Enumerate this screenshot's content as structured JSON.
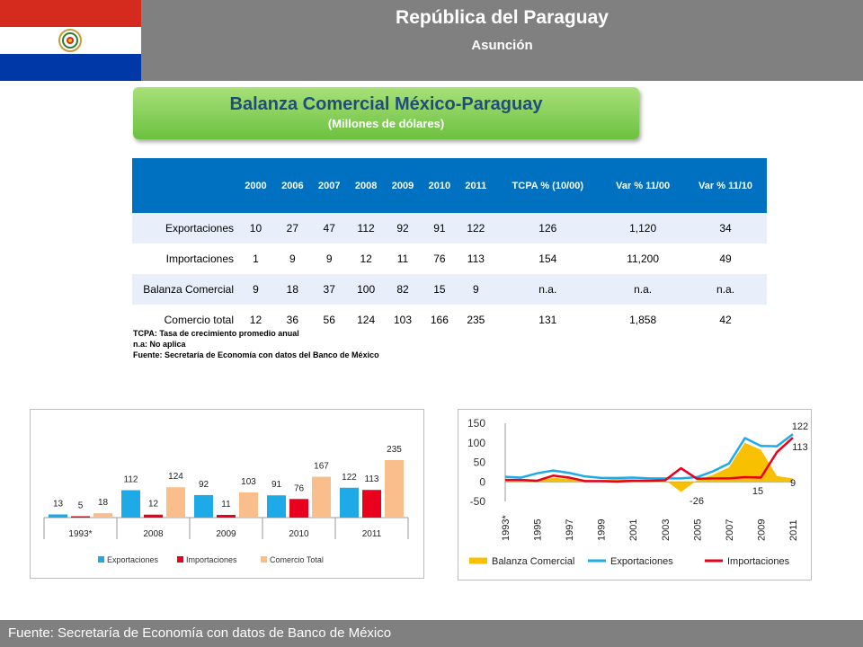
{
  "header": {
    "country": "República del Paraguay",
    "city": "Asunción"
  },
  "title_box": {
    "title": "Balanza Comercial México-Paraguay",
    "subtitle": "(Millones de dólares)"
  },
  "table": {
    "headers": [
      "2000",
      "2006",
      "2007",
      "2008",
      "2009",
      "2010",
      "2011",
      "TCPA % (10/00)",
      "Var % 11/00",
      "Var % 11/10"
    ],
    "rows": [
      {
        "label": "Exportaciones",
        "values": [
          "10",
          "27",
          "47",
          "112",
          "92",
          "91",
          "122",
          "126",
          "1,120",
          "34"
        ]
      },
      {
        "label": "Importaciones",
        "values": [
          "1",
          "9",
          "9",
          "12",
          "11",
          "76",
          "113",
          "154",
          "11,200",
          "49"
        ]
      },
      {
        "label": "Balanza Comercial",
        "values": [
          "9",
          "18",
          "37",
          "100",
          "82",
          "15",
          "9",
          "n.a.",
          "n.a.",
          "n.a."
        ]
      },
      {
        "label": "Comercio total",
        "values": [
          "12",
          "36",
          "56",
          "124",
          "103",
          "166",
          "235",
          "131",
          "1,858",
          "42"
        ]
      }
    ]
  },
  "notes": [
    "TCPA: Tasa de crecimiento promedio anual",
    "n.a: No aplica",
    "Fuente: Secretaría de Economía con datos del Banco de México"
  ],
  "chart_data": [
    {
      "type": "bar",
      "categories": [
        "1993*",
        "2008",
        "2009",
        "2010",
        "2011"
      ],
      "series": [
        {
          "name": "Exportaciones",
          "color": "#1eaae7",
          "values": [
            13,
            112,
            92,
            91,
            122
          ]
        },
        {
          "name": "Importaciones",
          "color": "#e8001c",
          "values": [
            5,
            12,
            11,
            76,
            113
          ]
        },
        {
          "name": "Comercio Total",
          "color": "#f9be8c",
          "values": [
            18,
            124,
            103,
            167,
            235
          ]
        }
      ],
      "ylim": [
        0,
        250
      ],
      "legend": "bottom"
    },
    {
      "type": "line",
      "x": [
        "1993*",
        "1994",
        "1995",
        "1996",
        "1997",
        "1998",
        "1999",
        "2000",
        "2001",
        "2002",
        "2003",
        "2004",
        "2005",
        "2006",
        "2007",
        "2008",
        "2009",
        "2010",
        "2011"
      ],
      "x_tick_labels": [
        "1993*",
        "1995",
        "1997",
        "1999",
        "2001",
        "2003",
        "2005",
        "2007",
        "2009",
        "2011"
      ],
      "y_ticks": [
        "150",
        "100",
        "50",
        "0",
        "-50"
      ],
      "ylim": [
        -50,
        150
      ],
      "series": [
        {
          "name": "Balanza Comercial",
          "kind": "area",
          "color": "#f7c000",
          "values": [
            8,
            6,
            4,
            10,
            8,
            4,
            4,
            9,
            6,
            4,
            5,
            -26,
            4,
            18,
            37,
            100,
            82,
            15,
            9
          ]
        },
        {
          "name": "Exportaciones",
          "kind": "line",
          "color": "#1eaae7",
          "values": [
            13,
            11,
            22,
            29,
            23,
            14,
            10,
            10,
            11,
            9,
            9,
            9,
            12,
            27,
            47,
            112,
            92,
            91,
            122
          ]
        },
        {
          "name": "Importaciones",
          "kind": "line",
          "color": "#e8001c",
          "values": [
            5,
            5,
            3,
            16,
            11,
            2,
            2,
            1,
            3,
            3,
            4,
            35,
            8,
            9,
            9,
            12,
            11,
            76,
            113
          ]
        }
      ],
      "annotations": [
        "122",
        "113",
        "-26",
        "15",
        "9"
      ],
      "legend": "bottom"
    }
  ],
  "footer": {
    "text": "Fuente: Secretaría de Economía con datos de Banco de México"
  }
}
